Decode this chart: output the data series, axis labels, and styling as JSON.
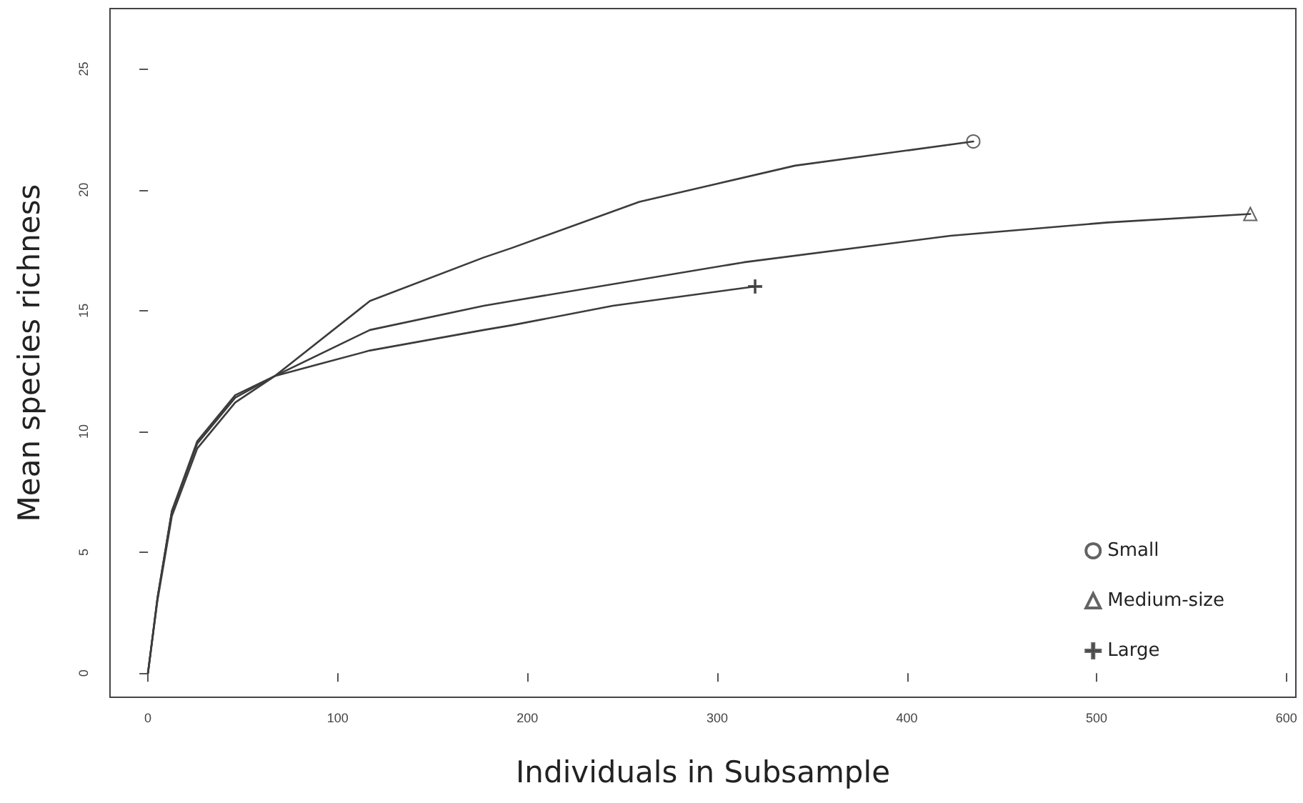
{
  "chart_data": {
    "type": "line",
    "xlabel": "Individuals in Subsample",
    "ylabel": "Mean species richness",
    "xlim": [
      -20,
      605
    ],
    "xticks": [
      0,
      100,
      200,
      300,
      400,
      500,
      600
    ],
    "ylim": [
      -1,
      27.5
    ],
    "yticks": [
      0,
      5,
      10,
      15,
      20,
      25
    ],
    "grid": false,
    "legend": "bottom right",
    "line_style": "solid",
    "series": [
      {
        "color": "#3c3c3c",
        "marker": "none",
        "x": [
          0,
          5,
          12.6,
          26,
          46,
          67,
          117,
          177,
          192,
          259,
          341,
          435
        ],
        "values": [
          0,
          3.0,
          6.5,
          9.3,
          11.2,
          12.3,
          15.4,
          17.2,
          17.6,
          19.5,
          21.0,
          22
        ]
      },
      {
        "color": "#3c3c3c",
        "marker": "none",
        "x": [
          0,
          5,
          12.6,
          26,
          46,
          67,
          117,
          177,
          192,
          314,
          423,
          506,
          581
        ],
        "values": [
          0,
          3.1,
          6.7,
          9.5,
          11.4,
          12.3,
          14.2,
          15.2,
          15.4,
          17.0,
          18.1,
          18.65,
          19
        ]
      },
      {
        "color": "#3c3c3c",
        "marker": "none",
        "x": [
          0,
          5,
          12.6,
          26,
          46,
          67,
          117,
          177,
          192,
          245,
          320
        ],
        "values": [
          0,
          3.1,
          6.7,
          9.6,
          11.5,
          12.3,
          13.35,
          14.2,
          14.4,
          15.2,
          16
        ]
      },
      {
        "type": "scatter",
        "name": "Small",
        "color": "#3c3c3c",
        "marker": "circle",
        "x": [
          435
        ],
        "values": [
          22
        ]
      },
      {
        "type": "scatter",
        "name": "Medium-size",
        "color": "#3c3c3c",
        "marker": "triangle",
        "x": [
          581
        ],
        "values": [
          19
        ]
      },
      {
        "type": "scatter",
        "name": "Large",
        "color": "#3c3c3c",
        "marker": "cross",
        "x": [
          320
        ],
        "values": [
          16
        ]
      }
    ]
  }
}
